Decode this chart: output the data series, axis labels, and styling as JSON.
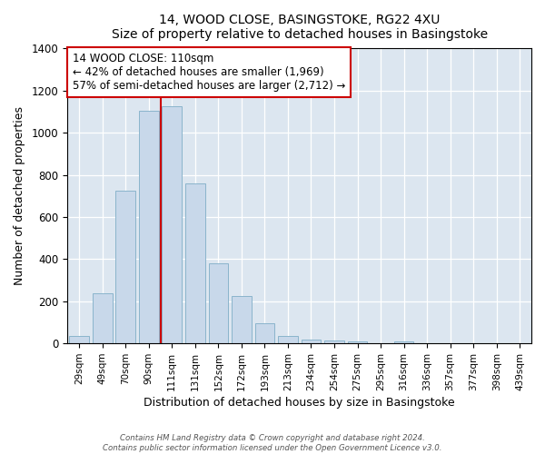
{
  "title1": "14, WOOD CLOSE, BASINGSTOKE, RG22 4XU",
  "title2": "Size of property relative to detached houses in Basingstoke",
  "xlabel": "Distribution of detached houses by size in Basingstoke",
  "ylabel": "Number of detached properties",
  "bar_labels": [
    "29sqm",
    "49sqm",
    "70sqm",
    "90sqm",
    "111sqm",
    "131sqm",
    "152sqm",
    "172sqm",
    "193sqm",
    "213sqm",
    "234sqm",
    "254sqm",
    "275sqm",
    "295sqm",
    "316sqm",
    "336sqm",
    "357sqm",
    "377sqm",
    "398sqm",
    "439sqm"
  ],
  "bar_values": [
    35,
    240,
    725,
    1105,
    1125,
    760,
    380,
    225,
    95,
    35,
    20,
    15,
    10,
    0,
    8,
    0,
    0,
    0,
    0,
    0
  ],
  "bar_color": "#c8d8ea",
  "bar_edgecolor": "#8ab4cc",
  "bg_color": "#dce6f0",
  "fig_color": "#ffffff",
  "grid_color": "#ffffff",
  "vline_color": "#cc0000",
  "vline_x": 4.0,
  "annotation_line1": "14 WOOD CLOSE: 110sqm",
  "annotation_line2": "← 42% of detached houses are smaller (1,969)",
  "annotation_line3": "57% of semi-detached houses are larger (2,712) →",
  "annotation_box_facecolor": "#ffffff",
  "annotation_box_edgecolor": "#cc0000",
  "ylim": [
    0,
    1400
  ],
  "yticks": [
    0,
    200,
    400,
    600,
    800,
    1000,
    1200,
    1400
  ],
  "footnote1": "Contains HM Land Registry data © Crown copyright and database right 2024.",
  "footnote2": "Contains public sector information licensed under the Open Government Licence v3.0."
}
